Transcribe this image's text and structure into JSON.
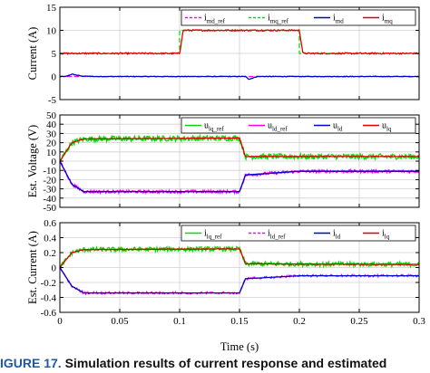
{
  "caption": {
    "figure_label": "IGURE 17.",
    "text": "Simulation results of current response and estimated"
  },
  "shared_xlabel": "Time (s)",
  "chart_data": [
    {
      "type": "line",
      "ylabel": "Current (A)",
      "xlim": [
        0,
        0.3
      ],
      "ylim": [
        -5,
        15
      ],
      "xticks": [
        0,
        0.05,
        0.1,
        0.15,
        0.2,
        0.25,
        0.3
      ],
      "yticks": [
        -5,
        0,
        5,
        10,
        15
      ],
      "ytick_labels": [
        "-5",
        "0",
        "5",
        "10",
        "15"
      ],
      "grid": true,
      "legend_position": "top-right",
      "series": [
        {
          "name": "i_md_ref",
          "sub": "md_ref",
          "color": "#ff00ff",
          "dash": "5,3",
          "noise": 0,
          "points": [
            [
              0,
              0
            ],
            [
              0.3,
              0
            ]
          ]
        },
        {
          "name": "i_mq_ref",
          "sub": "mq_ref",
          "color": "#00e000",
          "dash": "5,3",
          "noise": 0,
          "points": [
            [
              0,
              5
            ],
            [
              0.1,
              5
            ],
            [
              0.1,
              10
            ],
            [
              0.2,
              10
            ],
            [
              0.2,
              5
            ],
            [
              0.3,
              5
            ]
          ]
        },
        {
          "name": "i_md",
          "sub": "md",
          "color": "#0000cc",
          "dash": "",
          "noise": 0.06,
          "points": [
            [
              0,
              0
            ],
            [
              0.005,
              0
            ],
            [
              0.01,
              0.5
            ],
            [
              0.018,
              0.1
            ],
            [
              0.03,
              0
            ],
            [
              0.155,
              0
            ],
            [
              0.158,
              -0.6
            ],
            [
              0.165,
              0
            ],
            [
              0.3,
              0
            ]
          ]
        },
        {
          "name": "i_mq",
          "sub": "mq",
          "color": "#e00000",
          "dash": "",
          "noise": 0.15,
          "points": [
            [
              0,
              5
            ],
            [
              0.1,
              5
            ],
            [
              0.103,
              10
            ],
            [
              0.2,
              10
            ],
            [
              0.203,
              5
            ],
            [
              0.3,
              5
            ]
          ]
        }
      ]
    },
    {
      "type": "line",
      "ylabel": "Est. Voltage (V)",
      "xlim": [
        0,
        0.3
      ],
      "ylim": [
        -50,
        50
      ],
      "xticks": [
        0,
        0.05,
        0.1,
        0.15,
        0.2,
        0.25,
        0.3
      ],
      "yticks": [
        -50,
        -40,
        -30,
        -20,
        -10,
        0,
        10,
        20,
        30,
        40,
        50
      ],
      "ytick_labels": [
        "-50",
        "-40",
        "-30",
        "-20",
        "-10",
        "0",
        "10",
        "20",
        "30",
        "40",
        "50"
      ],
      "grid": true,
      "legend_position": "top-right",
      "series": [
        {
          "name": "u_lq_ref",
          "sub": "lq_ref",
          "color": "#00e000",
          "dash": "",
          "noise": 3,
          "points": [
            [
              0,
              0
            ],
            [
              0.01,
              20
            ],
            [
              0.02,
              24
            ],
            [
              0.15,
              25
            ],
            [
              0.155,
              5
            ],
            [
              0.3,
              5
            ]
          ]
        },
        {
          "name": "u_ld_ref",
          "sub": "ld_ref",
          "color": "#ff00ff",
          "dash": "",
          "noise": 1.6,
          "points": [
            [
              0,
              0
            ],
            [
              0.01,
              -25
            ],
            [
              0.02,
              -33
            ],
            [
              0.15,
              -33
            ],
            [
              0.155,
              -15
            ],
            [
              0.2,
              -11
            ],
            [
              0.3,
              -11
            ]
          ]
        },
        {
          "name": "u_ld",
          "sub": "ld",
          "color": "#0000cc",
          "dash": "",
          "noise": 0,
          "points": [
            [
              0,
              0
            ],
            [
              0.01,
              -25
            ],
            [
              0.02,
              -33
            ],
            [
              0.15,
              -33
            ],
            [
              0.155,
              -15
            ],
            [
              0.2,
              -11
            ],
            [
              0.3,
              -11
            ]
          ]
        },
        {
          "name": "u_lq",
          "sub": "lq",
          "color": "#e00000",
          "dash": "",
          "noise": 0.2,
          "points": [
            [
              0,
              0
            ],
            [
              0.01,
              20
            ],
            [
              0.02,
              24
            ],
            [
              0.15,
              25
            ],
            [
              0.155,
              5
            ],
            [
              0.3,
              5
            ]
          ]
        }
      ]
    },
    {
      "type": "line",
      "ylabel": "Est. Current (A)",
      "xlim": [
        0,
        0.3
      ],
      "ylim": [
        -0.6,
        0.6
      ],
      "xticks": [
        0,
        0.05,
        0.1,
        0.15,
        0.2,
        0.25,
        0.3
      ],
      "xtick_labels": [
        "0",
        "0.05",
        "0.1",
        "0.15",
        "0.2",
        "0.25",
        "0.3"
      ],
      "yticks": [
        -0.6,
        -0.4,
        -0.2,
        0,
        0.2,
        0.4,
        0.6
      ],
      "ytick_labels": [
        "-0.6",
        "-0.4",
        "-0.2",
        "0",
        "0.2",
        "0.4",
        "0.6"
      ],
      "grid": true,
      "legend_position": "top-right",
      "series": [
        {
          "name": "i_lq_ref",
          "sub": "lq_ref",
          "color": "#00e000",
          "dash": "",
          "noise": 0.03,
          "points": [
            [
              0,
              0
            ],
            [
              0.01,
              0.2
            ],
            [
              0.02,
              0.24
            ],
            [
              0.15,
              0.25
            ],
            [
              0.155,
              0.05
            ],
            [
              0.3,
              0.04
            ]
          ]
        },
        {
          "name": "i_ld_ref",
          "sub": "ld_ref",
          "color": "#ff00ff",
          "dash": "5,3",
          "noise": 0.015,
          "points": [
            [
              0,
              0
            ],
            [
              0.01,
              -0.25
            ],
            [
              0.02,
              -0.34
            ],
            [
              0.15,
              -0.34
            ],
            [
              0.155,
              -0.15
            ],
            [
              0.2,
              -0.11
            ],
            [
              0.3,
              -0.11
            ]
          ]
        },
        {
          "name": "i_ld",
          "sub": "ld",
          "color": "#0000cc",
          "dash": "",
          "noise": 0,
          "points": [
            [
              0,
              0
            ],
            [
              0.01,
              -0.25
            ],
            [
              0.02,
              -0.34
            ],
            [
              0.15,
              -0.34
            ],
            [
              0.155,
              -0.15
            ],
            [
              0.2,
              -0.11
            ],
            [
              0.3,
              -0.11
            ]
          ]
        },
        {
          "name": "i_lq",
          "sub": "lq",
          "color": "#e00000",
          "dash": "",
          "noise": 0.004,
          "points": [
            [
              0,
              0
            ],
            [
              0.01,
              0.2
            ],
            [
              0.02,
              0.24
            ],
            [
              0.15,
              0.25
            ],
            [
              0.155,
              0.05
            ],
            [
              0.3,
              0.04
            ]
          ]
        }
      ]
    }
  ]
}
